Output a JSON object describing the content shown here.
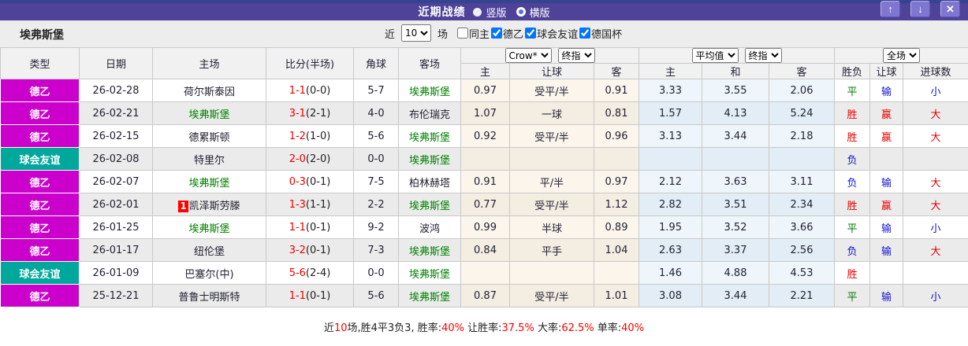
{
  "titlebar": {
    "title": "近期战绩",
    "layout_options": [
      {
        "label": "竖版",
        "selected": true
      },
      {
        "label": "横版",
        "selected": false
      }
    ],
    "buttons": {
      "up": "↑",
      "down": "↓",
      "close": "✕"
    }
  },
  "filterbar": {
    "team": "埃弗斯堡",
    "near_label": "近",
    "count_value": "10",
    "count_suffix": "场",
    "checkboxes": [
      {
        "label": "同主",
        "checked": false
      },
      {
        "label": "德乙",
        "checked": true
      },
      {
        "label": "球会友谊",
        "checked": true
      },
      {
        "label": "德国杯",
        "checked": true
      }
    ]
  },
  "table": {
    "static_headers": [
      "类型",
      "日期",
      "主场",
      "比分(半场)",
      "角球",
      "客场"
    ],
    "odds_group": {
      "selects": [
        "Crow*",
        "终指"
      ],
      "cols": [
        "主",
        "让球",
        "客"
      ]
    },
    "avg_group": {
      "selects": [
        "平均值",
        "终指"
      ],
      "cols": [
        "主",
        "和",
        "客"
      ]
    },
    "result_group": {
      "selects": [
        "全场"
      ],
      "cols": [
        "胜负",
        "让球",
        "进球数"
      ]
    },
    "rows": [
      {
        "type": "德乙",
        "date": "26-02-28",
        "home": "荷尔斯泰因",
        "score_ft": "1-1",
        "score_ht": "0-0",
        "corners": "5-7",
        "away": "埃弗斯堡",
        "odds": [
          "0.97",
          "受平/半",
          "0.91"
        ],
        "avg": [
          "3.33",
          "3.55",
          "2.06"
        ],
        "results": [
          "平",
          "输",
          "小"
        ]
      },
      {
        "type": "德乙",
        "date": "26-02-21",
        "home": "埃弗斯堡",
        "score_ft": "3-1",
        "score_ht": "2-1",
        "corners": "4-0",
        "away": "布伦瑞克",
        "odds": [
          "1.07",
          "一球",
          "0.81"
        ],
        "avg": [
          "1.57",
          "4.13",
          "5.24"
        ],
        "results": [
          "胜",
          "赢",
          "大"
        ]
      },
      {
        "type": "德乙",
        "date": "26-02-15",
        "home": "德累斯顿",
        "score_ft": "1-2",
        "score_ht": "1-0",
        "corners": "5-6",
        "away": "埃弗斯堡",
        "odds": [
          "0.92",
          "受平/半",
          "0.96"
        ],
        "avg": [
          "3.13",
          "3.44",
          "2.18"
        ],
        "results": [
          "胜",
          "赢",
          "大"
        ]
      },
      {
        "type": "球会友谊",
        "date": "26-02-08",
        "home": "特里尔",
        "score_ft": "2-0",
        "score_ht": "2-0",
        "corners": "0-0",
        "away": "埃弗斯堡",
        "odds": [
          "",
          "",
          ""
        ],
        "avg": [
          "",
          "",
          ""
        ],
        "results": [
          "负",
          "",
          ""
        ]
      },
      {
        "type": "德乙",
        "date": "26-02-07",
        "home": "埃弗斯堡",
        "score_ft": "0-3",
        "score_ht": "0-1",
        "corners": "7-5",
        "away": "柏林赫塔",
        "odds": [
          "0.91",
          "平/半",
          "0.97"
        ],
        "avg": [
          "2.12",
          "3.63",
          "3.11"
        ],
        "results": [
          "负",
          "输",
          "大"
        ]
      },
      {
        "type": "德乙",
        "date": "26-02-01",
        "home": "凯泽斯劳滕",
        "home_badge": "1",
        "score_ft": "1-3",
        "score_ht": "1-1",
        "corners": "2-2",
        "away": "埃弗斯堡",
        "odds": [
          "0.77",
          "受平/半",
          "1.12"
        ],
        "avg": [
          "2.82",
          "3.51",
          "2.34"
        ],
        "results": [
          "胜",
          "赢",
          "大"
        ]
      },
      {
        "type": "德乙",
        "date": "26-01-25",
        "home": "埃弗斯堡",
        "score_ft": "1-1",
        "score_ht": "0-1",
        "corners": "9-2",
        "away": "波鸿",
        "odds": [
          "0.99",
          "半球",
          "0.89"
        ],
        "avg": [
          "1.95",
          "3.52",
          "3.66"
        ],
        "results": [
          "平",
          "输",
          "小"
        ]
      },
      {
        "type": "德乙",
        "date": "26-01-17",
        "home": "纽伦堡",
        "score_ft": "3-2",
        "score_ht": "0-1",
        "corners": "7-3",
        "away": "埃弗斯堡",
        "odds": [
          "0.84",
          "平手",
          "1.04"
        ],
        "avg": [
          "2.63",
          "3.37",
          "2.56"
        ],
        "results": [
          "负",
          "输",
          "大"
        ]
      },
      {
        "type": "球会友谊",
        "date": "26-01-09",
        "home": "巴塞尔(中)",
        "score_ft": "5-6",
        "score_ht": "2-4",
        "corners": "0-0",
        "away": "埃弗斯堡",
        "odds": [
          "",
          "",
          ""
        ],
        "avg": [
          "1.46",
          "4.88",
          "4.53"
        ],
        "results": [
          "胜",
          "",
          ""
        ]
      },
      {
        "type": "德乙",
        "date": "25-12-21",
        "home": "普鲁士明斯特",
        "score_ft": "1-1",
        "score_ht": "0-1",
        "corners": "5-6",
        "away": "埃弗斯堡",
        "odds": [
          "0.87",
          "受平/半",
          "1.01"
        ],
        "avg": [
          "3.08",
          "3.44",
          "2.21"
        ],
        "results": [
          "平",
          "输",
          "小"
        ]
      }
    ]
  },
  "footer": {
    "segments": [
      {
        "text": "近",
        "color": "#222222"
      },
      {
        "text": "10",
        "color": "#FF0000"
      },
      {
        "text": "场,胜4平3负3, 胜率:",
        "color": "#222222"
      },
      {
        "text": "40%",
        "color": "#FF0000"
      },
      {
        "text": " 让胜率:",
        "color": "#222222"
      },
      {
        "text": "37.5%",
        "color": "#FF0000"
      },
      {
        "text": " 大率:",
        "color": "#222222"
      },
      {
        "text": "62.5%",
        "color": "#FF0000"
      },
      {
        "text": " 单率:",
        "color": "#222222"
      },
      {
        "text": "40%",
        "color": "#FF0000"
      }
    ]
  },
  "colors": {
    "top_strip": "#35448E",
    "title_bar": "#4F4299",
    "league": {
      "德乙": "#CC00CC",
      "球会友谊": "#00A79B"
    },
    "result": {
      "胜": "#E60000",
      "赢": "#E60000",
      "大": "#E60000",
      "平": "#007A00",
      "负": "#1414CC",
      "输": "#1414CC",
      "小": "#1414CC"
    },
    "focus_team": "#008000",
    "score_red": "#F00000"
  }
}
